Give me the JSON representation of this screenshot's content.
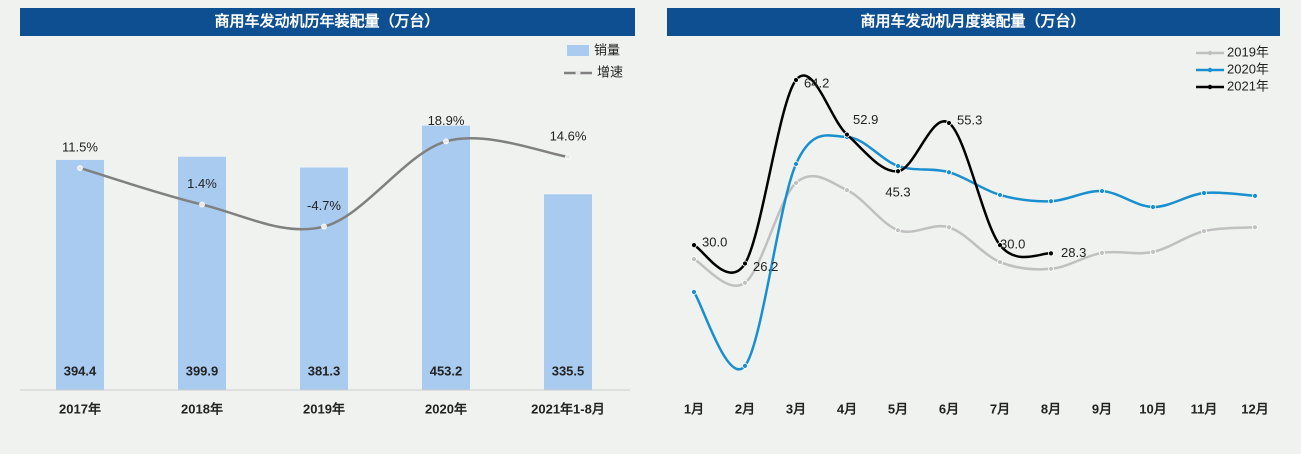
{
  "chart_data": [
    {
      "type": "combo",
      "title": "商用车发动机历年装配量（万台）",
      "categories": [
        "2017年",
        "2018年",
        "2019年",
        "2020年",
        "2021年1-8月"
      ],
      "ylim": [
        0,
        600
      ],
      "y2lim": [
        -50,
        47
      ],
      "series": [
        {
          "name": "销量",
          "type": "bar",
          "color": "#a9cbf0",
          "values": [
            394.4,
            399.9,
            381.3,
            453.2,
            335.5
          ]
        },
        {
          "name": "增速",
          "type": "line",
          "axis": "y2",
          "color": "#808080",
          "values": [
            11.5,
            1.4,
            -4.7,
            18.9,
            14.6
          ],
          "value_labels": [
            "11.5%",
            "1.4%",
            "-4.7%",
            "18.9%",
            "14.6%"
          ]
        }
      ]
    },
    {
      "type": "line",
      "title": "商用车发动机月度装配量（万台）",
      "categories": [
        "1月",
        "2月",
        "3月",
        "4月",
        "5月",
        "6月",
        "7月",
        "8月",
        "9月",
        "10月",
        "11月",
        "12月"
      ],
      "ylim": [
        0,
        70
      ],
      "series": [
        {
          "name": "2019年",
          "color": "#c0c0c0",
          "values": [
            27.1,
            22.2,
            42.9,
            41.4,
            33.1,
            33.7,
            26.5,
            25.1,
            28.4,
            28.6,
            32.9,
            33.7
          ]
        },
        {
          "name": "2020年",
          "color": "#1a8fcf",
          "values": [
            20.3,
            5.0,
            46.8,
            52.4,
            46.4,
            45.1,
            40.4,
            39.1,
            41.2,
            37.9,
            40.8,
            40.2
          ]
        },
        {
          "name": "2021年",
          "color": "#000000",
          "values": [
            30.0,
            26.2,
            64.2,
            52.9,
            45.3,
            55.3,
            30.0,
            28.3,
            null,
            null,
            null,
            null
          ],
          "value_labels": [
            "30.0",
            "26.2",
            "64.2",
            "52.9",
            "45.3",
            "55.3",
            "30.0",
            "28.3",
            null,
            null,
            null,
            null
          ]
        }
      ]
    }
  ]
}
